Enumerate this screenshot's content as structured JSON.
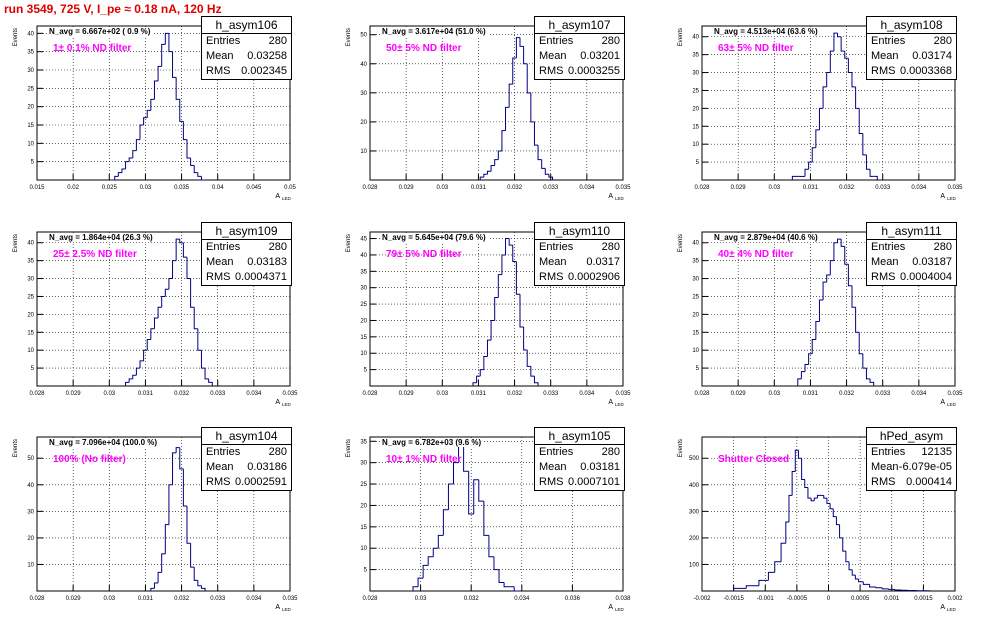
{
  "page": {
    "title": "run 3549,   725 V, I_pe ≈ 0.18 nA, 120 Hz",
    "title_color": "#e00000"
  },
  "colors": {
    "histogram_line": "#000080",
    "annotation": "#ff00ff"
  },
  "chart_data": [
    {
      "type": "bar",
      "histogram": "h_asym106",
      "stats": {
        "entries": "280",
        "mean": "0.03258",
        "rms": "0.002345"
      },
      "n_avg_label": "N_avg = 6.667e+02 ( 0.9 %)",
      "filter_label": "1± 0.1% ND filter",
      "ylabel": "Events",
      "xlabel": "A",
      "x_sub": "LED",
      "xlim": [
        0.015,
        0.05
      ],
      "ylim": [
        0,
        42
      ],
      "xticks": [
        "0.015",
        "0.02",
        "0.025",
        "0.03",
        "0.035",
        "0.04",
        "0.045",
        "0.05"
      ],
      "yticks": [
        "5",
        "10",
        "15",
        "20",
        "25",
        "30",
        "35",
        "40"
      ],
      "x": [
        0.0255,
        0.026,
        0.0265,
        0.027,
        0.0275,
        0.028,
        0.0285,
        0.029,
        0.0295,
        0.03,
        0.0305,
        0.031,
        0.0315,
        0.032,
        0.0325,
        0.033,
        0.0335,
        0.034,
        0.0345,
        0.035,
        0.0355,
        0.036,
        0.0365,
        0.037,
        0.0375,
        0.038
      ],
      "values": [
        0,
        1,
        2,
        3,
        5,
        6,
        8,
        11,
        15,
        17,
        19,
        22,
        27,
        31,
        37,
        40,
        35,
        28,
        22,
        16,
        11,
        6,
        4,
        2,
        1,
        0
      ]
    },
    {
      "type": "bar",
      "histogram": "h_asym107",
      "stats": {
        "entries": "280",
        "mean": "0.03201",
        "rms": "0.0003255"
      },
      "n_avg_label": "N_avg = 3.617e+04 (51.0 %)",
      "filter_label": "50± 5% ND filter",
      "ylabel": "Events",
      "xlabel": "A",
      "x_sub": "LED",
      "xlim": [
        0.028,
        0.035
      ],
      "ylim": [
        0,
        53
      ],
      "xticks": [
        "0.028",
        "0.029",
        "0.03",
        "0.031",
        "0.032",
        "0.033",
        "0.034",
        "0.035"
      ],
      "yticks": [
        "10",
        "20",
        "30",
        "40",
        "50"
      ],
      "x": [
        0.0311,
        0.0312,
        0.0313,
        0.0314,
        0.0315,
        0.0316,
        0.0317,
        0.0318,
        0.0319,
        0.032,
        0.0321,
        0.0322,
        0.0323,
        0.0324,
        0.0325,
        0.0326,
        0.0327,
        0.0328,
        0.0329,
        0.033
      ],
      "values": [
        1,
        2,
        3,
        5,
        7,
        10,
        17,
        25,
        33,
        42,
        49,
        46,
        40,
        30,
        20,
        12,
        7,
        4,
        2,
        1
      ]
    },
    {
      "type": "bar",
      "histogram": "h_asym108",
      "stats": {
        "entries": "280",
        "mean": "0.03174",
        "rms": "0.0003368"
      },
      "n_avg_label": "N_avg = 4.513e+04 (63.6 %)",
      "filter_label": "63± 5% ND filter",
      "ylabel": "Events",
      "xlabel": "A",
      "x_sub": "LED",
      "xlim": [
        0.028,
        0.035
      ],
      "ylim": [
        0,
        43
      ],
      "xticks": [
        "0.028",
        "0.029",
        "0.03",
        "0.031",
        "0.032",
        "0.033",
        "0.034",
        "0.035"
      ],
      "yticks": [
        "5",
        "10",
        "15",
        "20",
        "25",
        "30",
        "35",
        "40"
      ],
      "x": [
        0.0306,
        0.0308,
        0.0309,
        0.031,
        0.0311,
        0.0312,
        0.0313,
        0.0314,
        0.0315,
        0.0316,
        0.0317,
        0.0318,
        0.0319,
        0.032,
        0.0321,
        0.0322,
        0.0323,
        0.0324,
        0.0325,
        0.0326,
        0.0327,
        0.0328
      ],
      "values": [
        1,
        1,
        3,
        5,
        9,
        14,
        20,
        26,
        30,
        36,
        41,
        40,
        36,
        34,
        30,
        26,
        20,
        13,
        7,
        3,
        1,
        1
      ]
    },
    {
      "type": "bar",
      "histogram": "h_asym109",
      "stats": {
        "entries": "280",
        "mean": "0.03183",
        "rms": "0.0004371"
      },
      "n_avg_label": "N_avg = 1.864e+04 (26.3 %)",
      "filter_label": "25± 2.5% ND filter",
      "ylabel": "Events",
      "xlabel": "A",
      "x_sub": "LED",
      "xlim": [
        0.028,
        0.035
      ],
      "ylim": [
        0,
        43
      ],
      "xticks": [
        "0.028",
        "0.029",
        "0.03",
        "0.031",
        "0.032",
        "0.033",
        "0.034",
        "0.035"
      ],
      "yticks": [
        "5",
        "10",
        "15",
        "20",
        "25",
        "30",
        "35",
        "40"
      ],
      "x": [
        0.0305,
        0.0306,
        0.0307,
        0.0308,
        0.0309,
        0.031,
        0.0311,
        0.0312,
        0.0313,
        0.0314,
        0.0315,
        0.0316,
        0.0317,
        0.0318,
        0.0319,
        0.032,
        0.0321,
        0.0322,
        0.0323,
        0.0324,
        0.0325,
        0.0326,
        0.0327,
        0.0328
      ],
      "values": [
        1,
        2,
        3,
        5,
        7,
        10,
        13,
        16,
        19,
        22,
        25,
        27,
        30,
        35,
        41,
        40,
        36,
        30,
        22,
        16,
        10,
        5,
        2,
        1
      ]
    },
    {
      "type": "bar",
      "histogram": "h_asym110",
      "stats": {
        "entries": "280",
        "mean": "0.0317",
        "rms": "0.0002906"
      },
      "n_avg_label": "N_avg = 5.645e+04 (79.6 %)",
      "filter_label": "79± 5% ND filter",
      "ylabel": "Events",
      "xlabel": "A",
      "x_sub": "LED",
      "xlim": [
        0.028,
        0.035
      ],
      "ylim": [
        0,
        47
      ],
      "xticks": [
        "0.028",
        "0.029",
        "0.03",
        "0.031",
        "0.032",
        "0.033",
        "0.034",
        "0.035"
      ],
      "yticks": [
        "5",
        "10",
        "15",
        "20",
        "25",
        "30",
        "35",
        "40",
        "45"
      ],
      "x": [
        0.0309,
        0.031,
        0.0311,
        0.0312,
        0.0313,
        0.0314,
        0.0315,
        0.0316,
        0.0317,
        0.0318,
        0.0319,
        0.032,
        0.0321,
        0.0322,
        0.0323,
        0.0324,
        0.0325,
        0.0326
      ],
      "values": [
        1,
        3,
        5,
        9,
        14,
        20,
        27,
        34,
        40,
        45,
        43,
        38,
        28,
        18,
        11,
        6,
        3,
        1
      ]
    },
    {
      "type": "bar",
      "histogram": "h_asym111",
      "stats": {
        "entries": "280",
        "mean": "0.03187",
        "rms": "0.0004004"
      },
      "n_avg_label": "N_avg = 2.879e+04 (40.6 %)",
      "filter_label": "40± 4% ND filter",
      "ylabel": "Events",
      "xlabel": "A",
      "x_sub": "LED",
      "xlim": [
        0.028,
        0.035
      ],
      "ylim": [
        0,
        43
      ],
      "xticks": [
        "0.028",
        "0.029",
        "0.03",
        "0.031",
        "0.032",
        "0.033",
        "0.034",
        "0.035"
      ],
      "yticks": [
        "5",
        "10",
        "15",
        "20",
        "25",
        "30",
        "35",
        "40"
      ],
      "x": [
        0.0307,
        0.0308,
        0.0309,
        0.031,
        0.0311,
        0.0312,
        0.0313,
        0.0314,
        0.0315,
        0.0316,
        0.0317,
        0.0318,
        0.0319,
        0.032,
        0.0321,
        0.0322,
        0.0323,
        0.0324,
        0.0325,
        0.0326,
        0.0327
      ],
      "values": [
        2,
        4,
        6,
        9,
        13,
        18,
        24,
        29,
        31,
        35,
        40,
        41,
        39,
        34,
        28,
        22,
        15,
        9,
        5,
        2,
        1
      ]
    },
    {
      "type": "bar",
      "histogram": "h_asym104",
      "stats": {
        "entries": "280",
        "mean": "0.03186",
        "rms": "0.0002591"
      },
      "n_avg_label": "N_avg = 7.096e+04 (100.0 %)",
      "filter_label": "100% (No filter)",
      "ylabel": "Events",
      "xlabel": "A",
      "x_sub": "LED",
      "xlim": [
        0.028,
        0.035
      ],
      "ylim": [
        0,
        58
      ],
      "xticks": [
        "0.028",
        "0.029",
        "0.03",
        "0.031",
        "0.032",
        "0.033",
        "0.034",
        "0.035"
      ],
      "yticks": [
        "10",
        "20",
        "30",
        "40",
        "50"
      ],
      "x": [
        0.0312,
        0.0313,
        0.0314,
        0.0315,
        0.0316,
        0.0317,
        0.0318,
        0.0319,
        0.032,
        0.0321,
        0.0322,
        0.0323,
        0.0324,
        0.0325,
        0.0326
      ],
      "values": [
        1,
        3,
        7,
        14,
        25,
        40,
        52,
        54,
        46,
        32,
        18,
        9,
        4,
        2,
        1
      ]
    },
    {
      "type": "bar",
      "histogram": "h_asym105",
      "stats": {
        "entries": "280",
        "mean": "0.03181",
        "rms": "0.0007101"
      },
      "n_avg_label": "N_avg = 6.782e+03 (9.6 %)",
      "filter_label": "10± 1% ND filter",
      "ylabel": "Events",
      "xlabel": "A",
      "x_sub": "LED",
      "xlim": [
        0.028,
        0.038
      ],
      "ylim": [
        0,
        36
      ],
      "xticks": [
        "0.028",
        "0.03",
        "0.032",
        "0.034",
        "0.036",
        "0.038"
      ],
      "yticks": [
        "5",
        "10",
        "15",
        "20",
        "25",
        "30",
        "35"
      ],
      "x": [
        0.0298,
        0.03,
        0.0302,
        0.0304,
        0.0306,
        0.0308,
        0.031,
        0.0312,
        0.0314,
        0.0316,
        0.0318,
        0.032,
        0.0322,
        0.0324,
        0.0326,
        0.0328,
        0.033,
        0.0332,
        0.0334,
        0.0336,
        0.0338
      ],
      "values": [
        1,
        3,
        6,
        8,
        10,
        13,
        19,
        25,
        30,
        34,
        28,
        18,
        26,
        21,
        13,
        8,
        5,
        2,
        1,
        1,
        0
      ]
    },
    {
      "type": "bar",
      "histogram": "hPed_asym",
      "stats": {
        "entries": "12135",
        "mean": "-6.079e-05",
        "rms": "0.000414"
      },
      "n_avg_label": "",
      "filter_label": "Shutter Closed",
      "ylabel": "Events",
      "xlabel": "A",
      "x_sub": "LED",
      "xlim": [
        -0.002,
        0.002
      ],
      "ylim": [
        0,
        580
      ],
      "xticks": [
        "-0.002",
        "-0.0015",
        "-0.001",
        "-0.0005",
        "0",
        "0.0005",
        "0.001",
        "0.0015",
        "0.002"
      ],
      "yticks": [
        "100",
        "200",
        "300",
        "400",
        "500"
      ],
      "x": [
        -0.0014,
        -0.0012,
        -0.001,
        -0.0009,
        -0.0008,
        -0.0007,
        -0.00065,
        -0.0006,
        -0.00055,
        -0.0005,
        -0.00045,
        -0.0004,
        -0.00035,
        -0.0003,
        -0.00025,
        -0.0002,
        -0.00015,
        -0.0001,
        -5e-05,
        0,
        5e-05,
        0.0001,
        0.00015,
        0.0002,
        0.00025,
        0.0003,
        0.00035,
        0.0004,
        0.00045,
        0.0005,
        0.0006,
        0.0007,
        0.0008,
        0.0009,
        0.001,
        0.0011,
        0.0012,
        0.0013,
        0.0015
      ],
      "values": [
        10,
        20,
        40,
        70,
        110,
        180,
        260,
        360,
        450,
        530,
        500,
        420,
        390,
        350,
        340,
        350,
        360,
        360,
        350,
        330,
        310,
        280,
        250,
        200,
        150,
        110,
        80,
        60,
        45,
        35,
        25,
        15,
        12,
        8,
        6,
        4,
        3,
        2,
        1
      ]
    }
  ]
}
